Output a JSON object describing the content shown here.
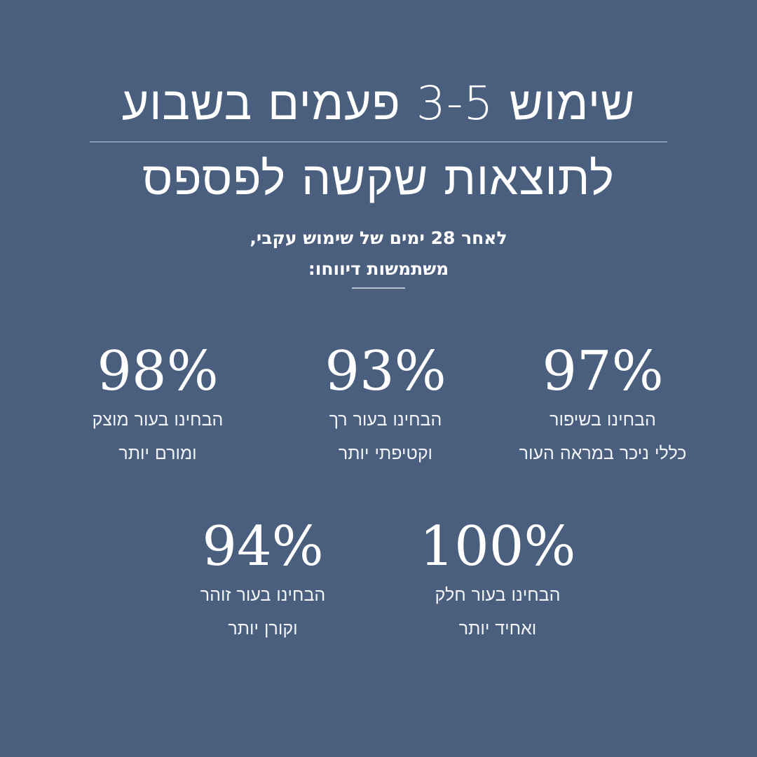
{
  "header": {
    "title_line1": "שימוש 3-5 פעמים בשבוע",
    "title_line2": "לתוצאות שקשה לפספס",
    "subtitle_line1": "לאחר 28 ימים של שימוש עקבי,",
    "subtitle_line2": "משתמשות דיווחו:"
  },
  "stats": [
    {
      "value": "97%",
      "line1": "הבחינו בשיפור",
      "line2": "כללי ניכר במראה העור"
    },
    {
      "value": "93%",
      "line1": "הבחינו בעור רך",
      "line2": "וקטיפתי יותר"
    },
    {
      "value": "98%",
      "line1": "הבחינו בעור מוצק",
      "line2": "ומורם יותר"
    },
    {
      "value": "100%",
      "line1": "הבחינו בעור חלק",
      "line2": "ואחיד יותר"
    },
    {
      "value": "94%",
      "line1": "הבחינו בעור זוהר",
      "line2": "וקורן יותר"
    }
  ],
  "colors": {
    "background": "#4a5e7e",
    "text": "#ffffff"
  }
}
